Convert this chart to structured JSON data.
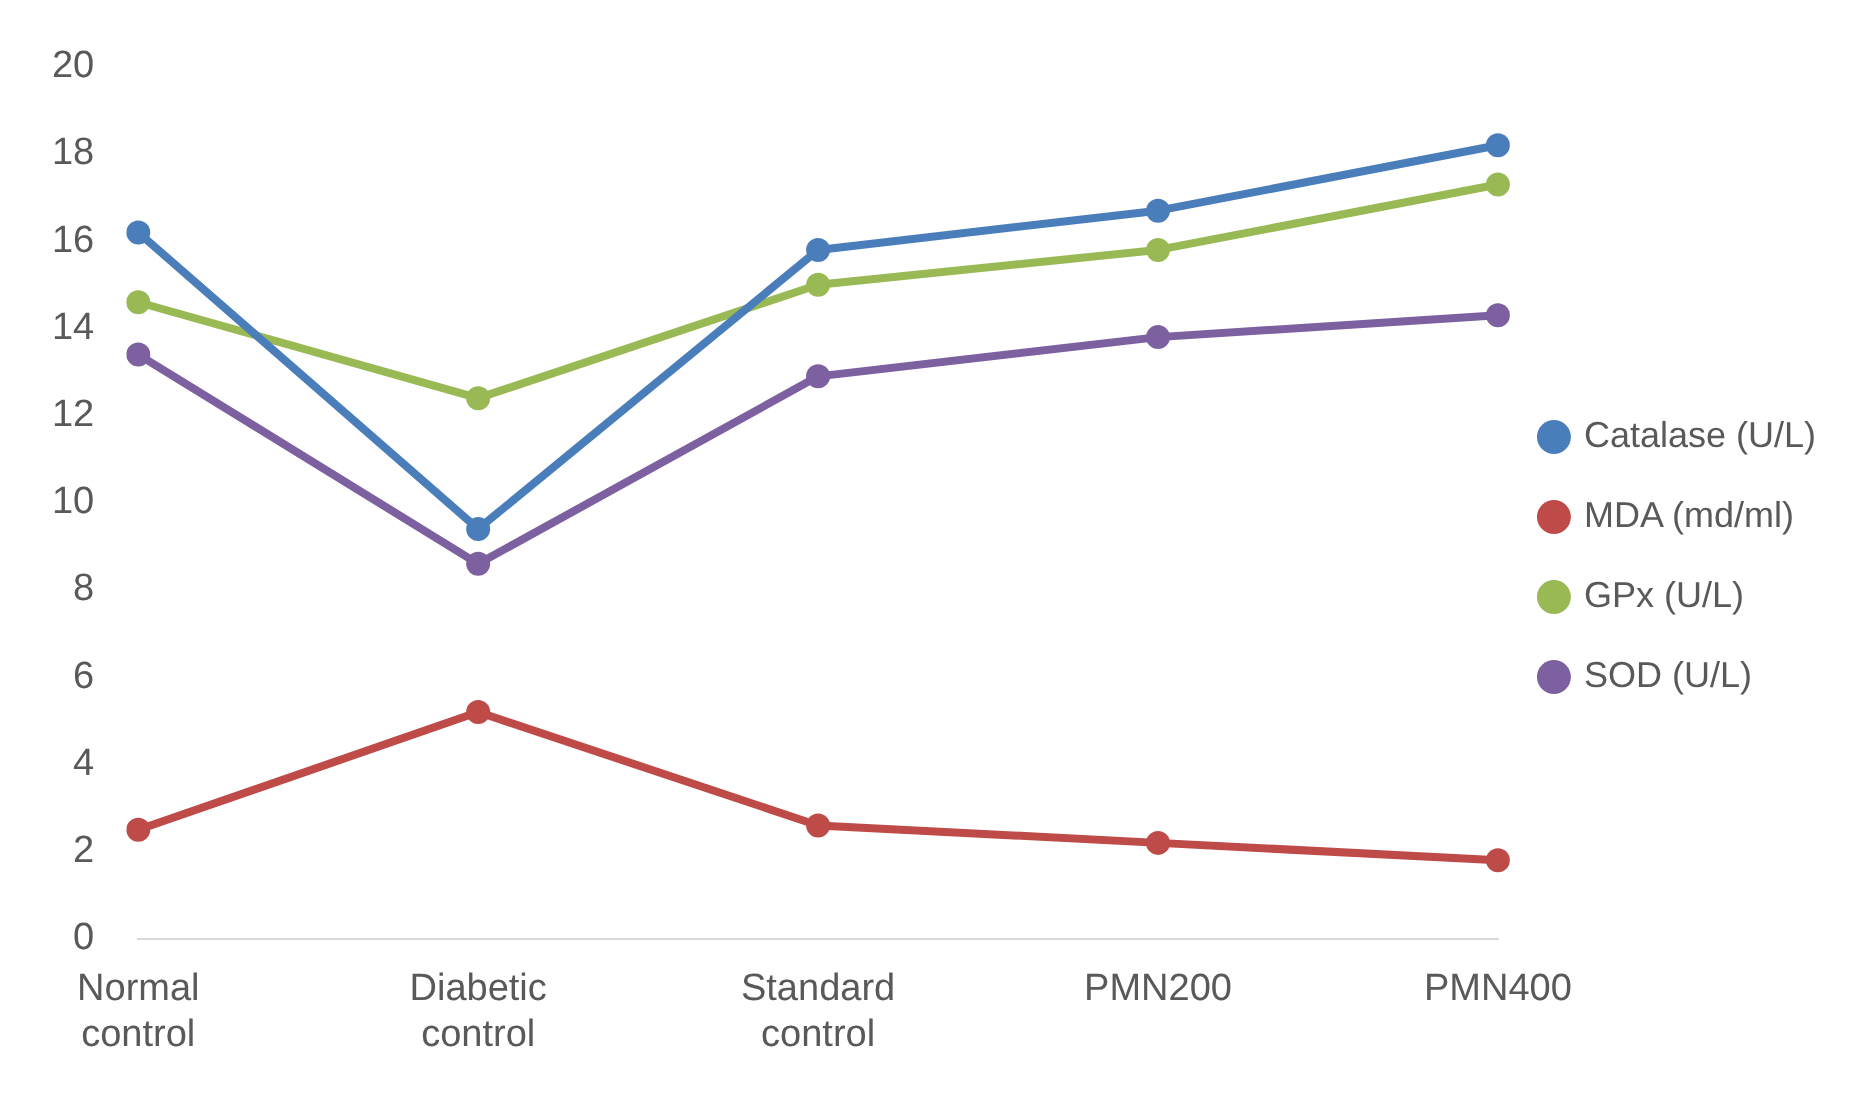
{
  "chart_data": {
    "type": "line",
    "categories": [
      "Normal control",
      "Diabetic control",
      "Standard control",
      "PMN200",
      "PMN400"
    ],
    "series": [
      {
        "name": "Catalase (U/L)",
        "color": "#4a7ebb",
        "values": [
          16.2,
          9.4,
          15.8,
          16.7,
          18.2
        ]
      },
      {
        "name": "MDA (md/ml)",
        "color": "#be4b48",
        "values": [
          2.5,
          5.2,
          2.6,
          2.2,
          1.8
        ]
      },
      {
        "name": "GPx (U/L)",
        "color": "#98b954",
        "values": [
          14.6,
          12.4,
          15.0,
          15.8,
          17.3
        ]
      },
      {
        "name": "SOD (U/L)",
        "color": "#7d60a0",
        "values": [
          13.4,
          8.6,
          12.9,
          13.8,
          14.3
        ]
      }
    ],
    "ylim": [
      0,
      20
    ],
    "yticks": [
      0,
      2,
      4,
      6,
      8,
      10,
      12,
      14,
      16,
      18,
      20
    ],
    "grid": false,
    "legend": "right",
    "marker": "circle",
    "line_style": "solid"
  }
}
